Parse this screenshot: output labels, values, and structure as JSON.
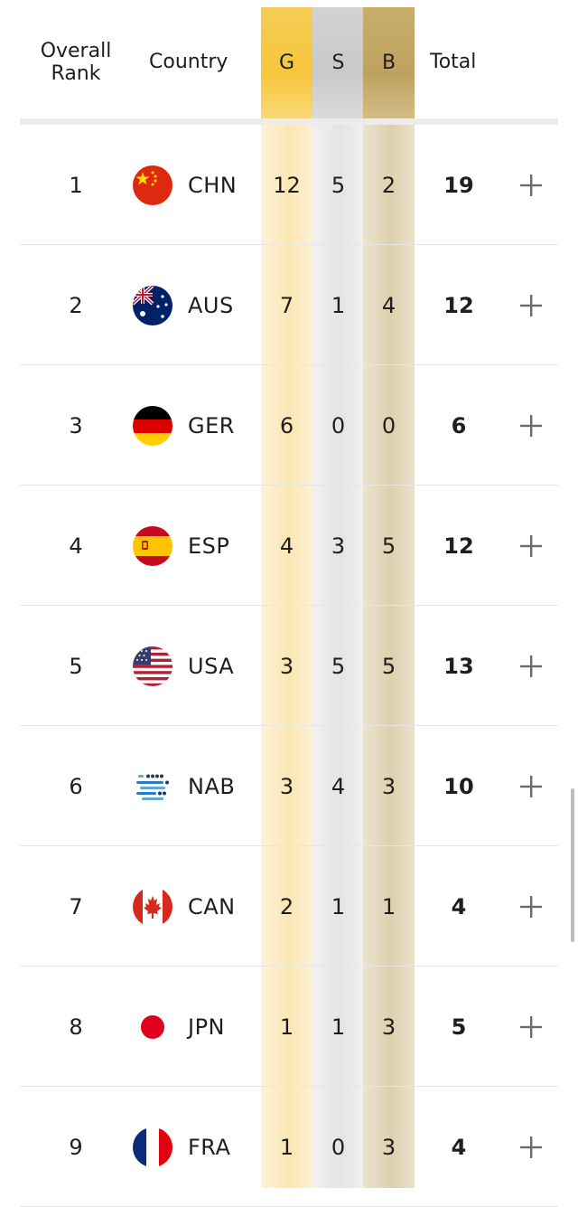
{
  "header": {
    "rank_label": "Overall Rank",
    "country_label": "Country",
    "gold_label": "G",
    "silver_label": "S",
    "bronze_label": "B",
    "total_label": "Total"
  },
  "colors": {
    "gold": "#f7c63c",
    "silver": "#c9c9c9",
    "bronze": "#bfa25e"
  },
  "rows": [
    {
      "rank": "1",
      "code": "CHN",
      "flag_icon": "china-flag-icon",
      "gold": "12",
      "silver": "5",
      "bronze": "2",
      "total": "19"
    },
    {
      "rank": "2",
      "code": "AUS",
      "flag_icon": "australia-flag-icon",
      "gold": "7",
      "silver": "1",
      "bronze": "4",
      "total": "12"
    },
    {
      "rank": "3",
      "code": "GER",
      "flag_icon": "germany-flag-icon",
      "gold": "6",
      "silver": "0",
      "bronze": "0",
      "total": "6"
    },
    {
      "rank": "4",
      "code": "ESP",
      "flag_icon": "spain-flag-icon",
      "gold": "4",
      "silver": "3",
      "bronze": "5",
      "total": "12"
    },
    {
      "rank": "5",
      "code": "USA",
      "flag_icon": "usa-flag-icon",
      "gold": "3",
      "silver": "5",
      "bronze": "5",
      "total": "13"
    },
    {
      "rank": "6",
      "code": "NAB",
      "flag_icon": "neutral-athletes-flag-icon",
      "gold": "3",
      "silver": "4",
      "bronze": "3",
      "total": "10"
    },
    {
      "rank": "7",
      "code": "CAN",
      "flag_icon": "canada-flag-icon",
      "gold": "2",
      "silver": "1",
      "bronze": "1",
      "total": "4"
    },
    {
      "rank": "8",
      "code": "JPN",
      "flag_icon": "japan-flag-icon",
      "gold": "1",
      "silver": "1",
      "bronze": "3",
      "total": "5"
    },
    {
      "rank": "9",
      "code": "FRA",
      "flag_icon": "france-flag-icon",
      "gold": "1",
      "silver": "0",
      "bronze": "3",
      "total": "4"
    }
  ],
  "expand_symbol": "+"
}
